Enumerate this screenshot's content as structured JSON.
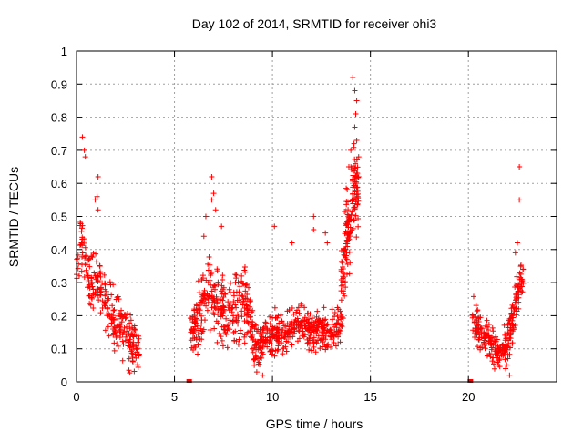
{
  "chart_data": {
    "type": "scatter",
    "title": "Day 102 of 2014, SRMTID for receiver ohi3",
    "xlabel": "GPS time / hours",
    "ylabel": "SRMTID / TECUs",
    "xlim": [
      0,
      24.5
    ],
    "ylim": [
      0,
      1
    ],
    "grid": true,
    "marker": "+",
    "color": "#ff0000",
    "x_ticks": [
      0,
      5,
      10,
      15,
      20
    ],
    "x_tick_labels": [
      "0",
      "5",
      "10",
      "15",
      "20"
    ],
    "y_ticks": [
      0,
      0.1,
      0.2,
      0.3,
      0.4,
      0.5,
      0.6,
      0.7,
      0.8,
      0.9,
      1
    ],
    "y_tick_labels": [
      "0",
      "0.1",
      "0.2",
      "0.3",
      "0.4",
      "0.5",
      "0.6",
      "0.7",
      "0.8",
      "0.9",
      "1"
    ],
    "segments": [
      {
        "start": 0.0,
        "end": 3.2,
        "profile": [
          [
            0.0,
            0.33
          ],
          [
            0.3,
            0.45
          ],
          [
            0.6,
            0.3
          ],
          [
            1.0,
            0.33
          ],
          [
            1.5,
            0.25
          ],
          [
            2.0,
            0.18
          ],
          [
            2.5,
            0.13
          ],
          [
            3.2,
            0.1
          ]
        ],
        "spread": 0.09,
        "count": 260
      },
      {
        "start": 5.8,
        "end": 9.0,
        "profile": [
          [
            5.8,
            0.15
          ],
          [
            6.3,
            0.22
          ],
          [
            6.8,
            0.28
          ],
          [
            7.3,
            0.22
          ],
          [
            8.0,
            0.2
          ],
          [
            8.5,
            0.25
          ],
          [
            9.0,
            0.15
          ]
        ],
        "spread": 0.1,
        "count": 300
      },
      {
        "start": 9.0,
        "end": 13.5,
        "profile": [
          [
            9.0,
            0.1
          ],
          [
            9.5,
            0.12
          ],
          [
            10.0,
            0.15
          ],
          [
            10.5,
            0.14
          ],
          [
            11.0,
            0.16
          ],
          [
            11.5,
            0.18
          ],
          [
            12.0,
            0.15
          ],
          [
            12.5,
            0.17
          ],
          [
            13.0,
            0.15
          ],
          [
            13.5,
            0.18
          ]
        ],
        "spread": 0.06,
        "count": 400
      },
      {
        "start": 13.5,
        "end": 14.4,
        "profile": [
          [
            13.5,
            0.25
          ],
          [
            13.8,
            0.45
          ],
          [
            14.0,
            0.5
          ],
          [
            14.2,
            0.6
          ],
          [
            14.4,
            0.55
          ]
        ],
        "spread": 0.13,
        "count": 160
      },
      {
        "start": 20.2,
        "end": 22.8,
        "profile": [
          [
            20.2,
            0.2
          ],
          [
            20.6,
            0.15
          ],
          [
            21.0,
            0.13
          ],
          [
            21.5,
            0.1
          ],
          [
            22.0,
            0.1
          ],
          [
            22.3,
            0.2
          ],
          [
            22.6,
            0.3
          ],
          [
            22.8,
            0.3
          ]
        ],
        "spread": 0.06,
        "count": 260
      }
    ],
    "extra_points": [
      [
        0.3,
        0.74
      ],
      [
        0.4,
        0.7
      ],
      [
        0.45,
        0.68
      ],
      [
        1.1,
        0.62
      ],
      [
        1.05,
        0.56
      ],
      [
        0.95,
        0.55
      ],
      [
        1.1,
        0.52
      ],
      [
        6.9,
        0.62
      ],
      [
        7.0,
        0.57
      ],
      [
        6.9,
        0.55
      ],
      [
        7.1,
        0.52
      ],
      [
        6.6,
        0.5
      ],
      [
        7.4,
        0.47
      ],
      [
        6.5,
        0.44
      ],
      [
        10.1,
        0.47
      ],
      [
        12.1,
        0.5
      ],
      [
        12.1,
        0.46
      ],
      [
        12.7,
        0.45
      ],
      [
        11.0,
        0.42
      ],
      [
        12.8,
        0.42
      ],
      [
        14.1,
        0.92
      ],
      [
        14.2,
        0.88
      ],
      [
        14.3,
        0.85
      ],
      [
        14.25,
        0.81
      ],
      [
        14.2,
        0.77
      ],
      [
        14.3,
        0.73
      ],
      [
        14.0,
        0.7
      ],
      [
        14.4,
        0.68
      ],
      [
        13.9,
        0.65
      ],
      [
        14.4,
        0.62
      ],
      [
        22.6,
        0.65
      ],
      [
        22.6,
        0.55
      ],
      [
        22.5,
        0.42
      ],
      [
        22.4,
        0.39
      ],
      [
        9.5,
        0.02
      ],
      [
        9.2,
        0.03
      ],
      [
        22.1,
        0.02
      ],
      [
        21.9,
        0.04
      ]
    ],
    "zero_markers": [
      [
        5.75,
        0.0
      ],
      [
        20.1,
        0.0
      ]
    ]
  }
}
